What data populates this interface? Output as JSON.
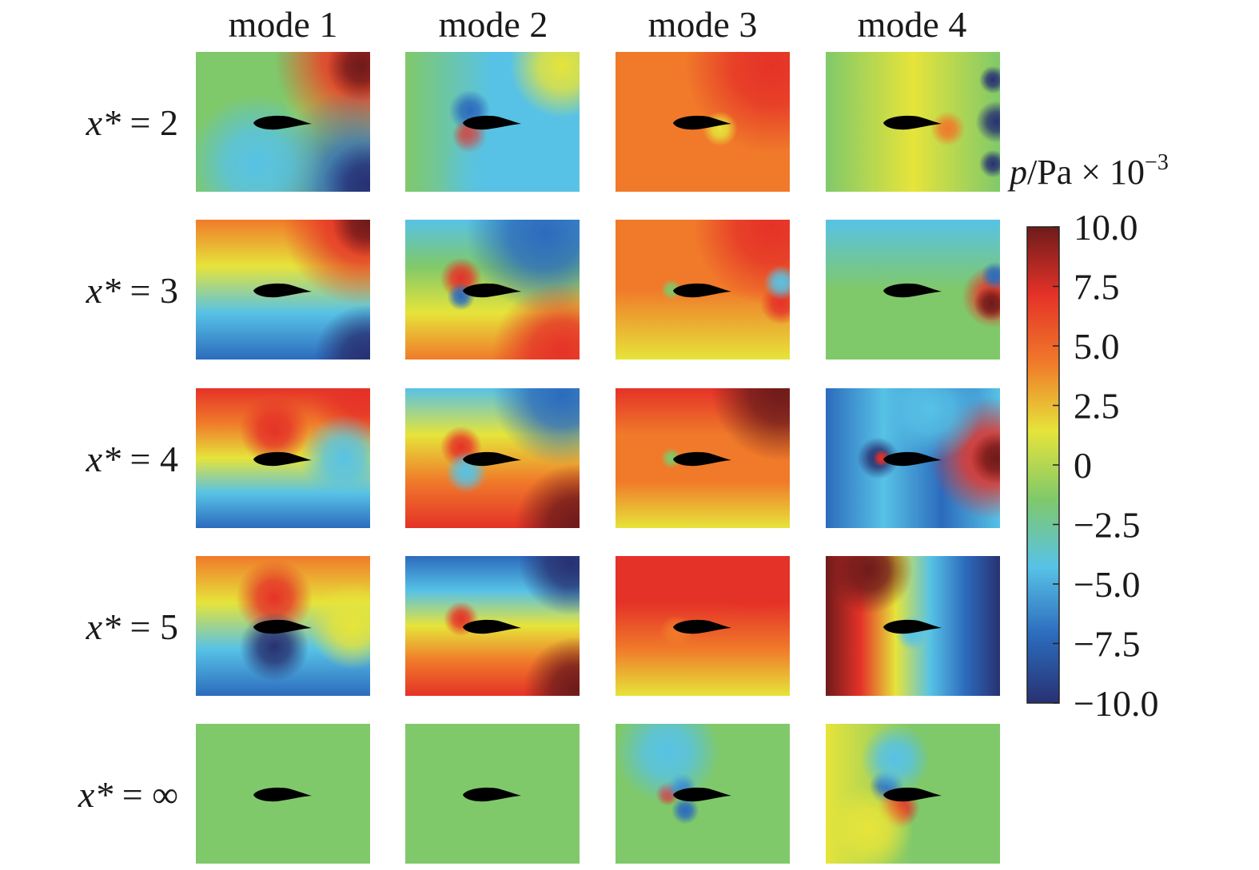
{
  "columns": [
    "mode 1",
    "mode 2",
    "mode 3",
    "mode 4"
  ],
  "rows": [
    "x* = 2",
    "x* = 3",
    "x* = 4",
    "x* = 5",
    "x* = ∞"
  ],
  "colorbar": {
    "symbol": "p",
    "unit": "/Pa × 10",
    "exponent": "−3",
    "lim": [
      -10,
      10
    ],
    "ticks": [
      {
        "value": 10,
        "label": "10.0"
      },
      7.5,
      {
        "value": 5,
        "label": "5.0"
      },
      2.5,
      0,
      {
        "value": -2.5,
        "label": "−2.5"
      },
      {
        "value": -5,
        "label": "−5.0"
      },
      {
        "value": -7.5,
        "label": "−7.5"
      },
      {
        "value": -10,
        "label": "−10.0"
      }
    ]
  }
}
